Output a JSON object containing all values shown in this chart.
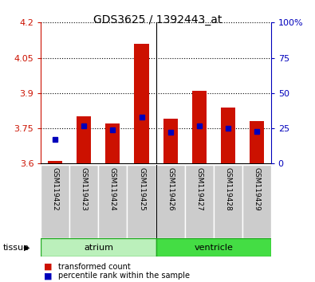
{
  "title": "GDS3625 / 1392443_at",
  "samples": [
    "GSM119422",
    "GSM119423",
    "GSM119424",
    "GSM119425",
    "GSM119426",
    "GSM119427",
    "GSM119428",
    "GSM119429"
  ],
  "transformed_count": [
    3.61,
    3.8,
    3.77,
    4.11,
    3.79,
    3.91,
    3.84,
    3.78
  ],
  "percentile_rank": [
    17,
    27,
    24,
    33,
    22,
    27,
    25,
    23
  ],
  "ymin": 3.6,
  "ymax": 4.2,
  "yticks": [
    3.6,
    3.75,
    3.9,
    4.05,
    4.2
  ],
  "right_yticks": [
    0,
    25,
    50,
    75,
    100
  ],
  "bar_color": "#cc1100",
  "dot_color": "#0000bb",
  "left_axis_color": "#cc1100",
  "right_axis_color": "#0000bb",
  "bar_baseline": 3.6,
  "bar_width": 0.5,
  "atrium_color": "#bbf0bb",
  "ventricle_color": "#44dd44",
  "group_border_color": "#22aa22",
  "gray_cell_color": "#cccccc",
  "atrium_indices": [
    0,
    1,
    2,
    3
  ],
  "ventricle_indices": [
    4,
    5,
    6,
    7
  ]
}
